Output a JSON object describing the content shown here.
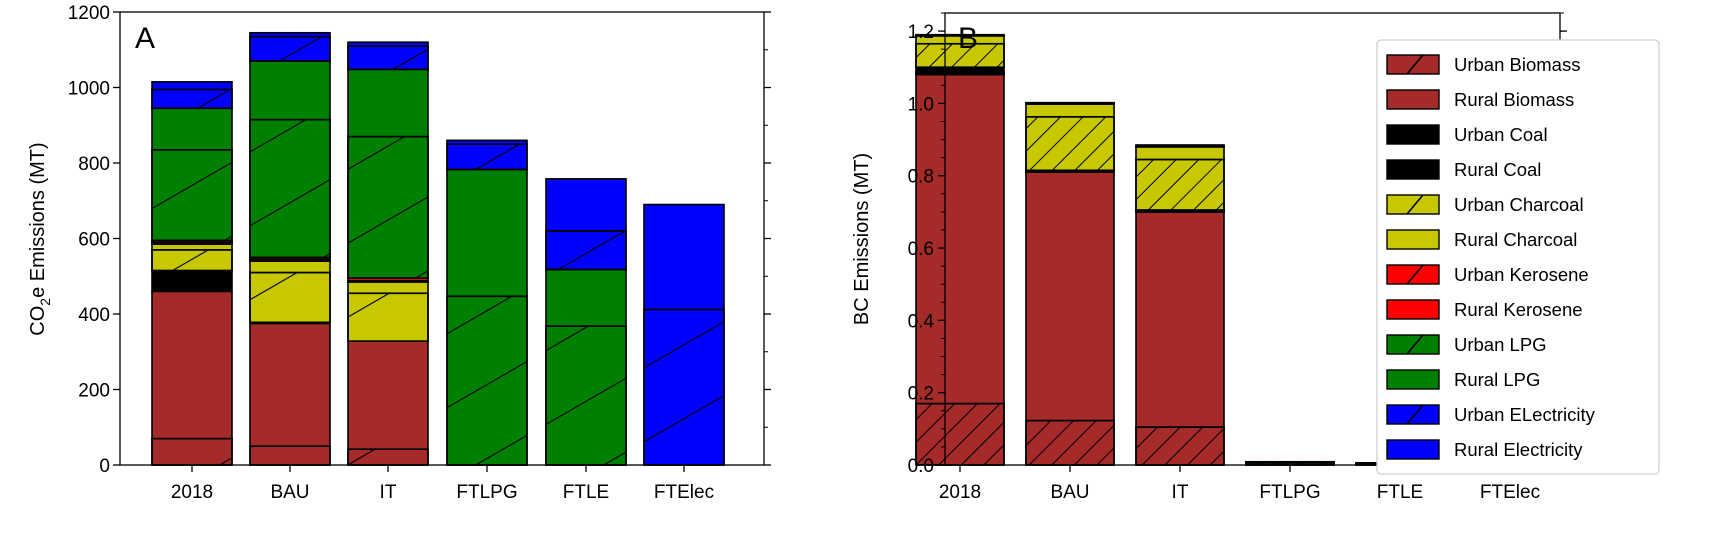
{
  "chart_data": [
    {
      "type": "bar",
      "stacked": true,
      "panel": "A",
      "title": "",
      "xlabel": "",
      "ylabel_main": "CO",
      "ylabel_sub": "2",
      "ylabel_rest": "e Emissions (MT)",
      "ylim": [
        0,
        1200
      ],
      "yticks": [
        0,
        200,
        400,
        600,
        800,
        1000,
        1200
      ],
      "ytick_labels": [
        "0",
        "200",
        "400",
        "600",
        "800",
        "1000",
        "1200"
      ],
      "categories": [
        "2018",
        "BAU",
        "IT",
        "FTLPG",
        "FTLE",
        "FTElec"
      ],
      "series": [
        {
          "name": "Urban Biomass",
          "values": [
            70,
            50,
            42,
            0,
            0,
            0
          ]
        },
        {
          "name": "Rural Biomass",
          "values": [
            390,
            325,
            286,
            0,
            0,
            0
          ]
        },
        {
          "name": "Urban Coal",
          "values": [
            0,
            0,
            0,
            0,
            0,
            0
          ]
        },
        {
          "name": "Rural Coal",
          "values": [
            55,
            3,
            0,
            0,
            0,
            0
          ]
        },
        {
          "name": "Urban Charcoal",
          "values": [
            55,
            132,
            127,
            0,
            0,
            0
          ]
        },
        {
          "name": "Rural Charcoal",
          "values": [
            15,
            30,
            30,
            0,
            0,
            0
          ]
        },
        {
          "name": "Urban Kerosene",
          "values": [
            5,
            5,
            3,
            0,
            0,
            0
          ]
        },
        {
          "name": "Rural Kerosene",
          "values": [
            5,
            5,
            7,
            0,
            0,
            0
          ]
        },
        {
          "name": "Urban LPG",
          "values": [
            240,
            365,
            375,
            447,
            368,
            0
          ]
        },
        {
          "name": "Rural LPG",
          "values": [
            110,
            155,
            178,
            336,
            150,
            0
          ]
        },
        {
          "name": "Urban ELectricity",
          "values": [
            50,
            65,
            62,
            67,
            102,
            412
          ]
        },
        {
          "name": "Rural Electricity",
          "values": [
            20,
            10,
            10,
            10,
            138,
            278
          ]
        }
      ],
      "grid": false
    },
    {
      "type": "bar",
      "stacked": true,
      "panel": "B",
      "title": "",
      "xlabel": "",
      "ylabel": "BC Emissions (MT)",
      "ylim": [
        0,
        1.25
      ],
      "yticks": [
        0.0,
        0.2,
        0.4,
        0.6,
        0.8,
        1.0,
        1.2
      ],
      "ytick_labels": [
        "0.0",
        "0.2",
        "0.4",
        "0.6",
        "0.8",
        "1.0",
        "1.2"
      ],
      "categories": [
        "2018",
        "BAU",
        "IT",
        "FTLPG",
        "FTLE",
        "FTElec"
      ],
      "series": [
        {
          "name": "Urban Biomass",
          "values": [
            0.17,
            0.123,
            0.105,
            0,
            0,
            0
          ]
        },
        {
          "name": "Rural Biomass",
          "values": [
            0.91,
            0.687,
            0.595,
            0,
            0,
            0
          ]
        },
        {
          "name": "Urban Coal",
          "values": [
            0.008,
            0.002,
            0.002,
            0,
            0,
            0
          ]
        },
        {
          "name": "Rural Coal",
          "values": [
            0.012,
            0.003,
            0.003,
            0,
            0,
            0
          ]
        },
        {
          "name": "Urban Charcoal",
          "values": [
            0.065,
            0.148,
            0.14,
            0,
            0,
            0
          ]
        },
        {
          "name": "Rural Charcoal",
          "values": [
            0.022,
            0.035,
            0.035,
            0,
            0,
            0
          ]
        },
        {
          "name": "Urban Kerosene",
          "values": [
            0.0,
            0.0,
            0.0,
            0,
            0,
            0
          ]
        },
        {
          "name": "Rural Kerosene",
          "values": [
            0.0,
            0.0,
            0.0,
            0,
            0,
            0
          ]
        },
        {
          "name": "Urban LPG",
          "values": [
            0.0,
            0.0,
            0.0,
            0.006,
            0.004,
            0
          ]
        },
        {
          "name": "Rural LPG",
          "values": [
            0.0,
            0.0,
            0.0,
            0.002,
            0.001,
            0
          ]
        },
        {
          "name": "Urban ELectricity",
          "values": [
            0.002,
            0.002,
            0.002,
            0.0005,
            0.0005,
            0.002
          ]
        },
        {
          "name": "Rural Electricity",
          "values": [
            0.001,
            0.002,
            0.003,
            0.0005,
            0.0005,
            0.001
          ]
        }
      ],
      "legend": {
        "position": "upper-right",
        "entries": [
          "Urban Biomass",
          "Rural Biomass",
          "Urban Coal",
          "Rural Coal",
          "Urban Charcoal",
          "Rural Charcoal",
          "Urban Kerosene",
          "Rural Kerosene",
          "Urban LPG",
          "Rural LPG",
          "Urban ELectricity",
          "Rural Electricity"
        ]
      },
      "grid": false
    }
  ],
  "series_styles": [
    {
      "name": "Urban Biomass",
      "color": "#a52a2a",
      "hatch": true
    },
    {
      "name": "Rural Biomass",
      "color": "#a52a2a",
      "hatch": false
    },
    {
      "name": "Urban Coal",
      "color": "#000000",
      "hatch": true
    },
    {
      "name": "Rural Coal",
      "color": "#000000",
      "hatch": false
    },
    {
      "name": "Urban Charcoal",
      "color": "#c8c800",
      "hatch": true
    },
    {
      "name": "Rural Charcoal",
      "color": "#c8c800",
      "hatch": false
    },
    {
      "name": "Urban Kerosene",
      "color": "#ff0000",
      "hatch": true
    },
    {
      "name": "Rural Kerosene",
      "color": "#ff0000",
      "hatch": false
    },
    {
      "name": "Urban LPG",
      "color": "#008000",
      "hatch": true
    },
    {
      "name": "Rural LPG",
      "color": "#008000",
      "hatch": false
    },
    {
      "name": "Urban ELectricity",
      "color": "#0000ff",
      "hatch": true
    },
    {
      "name": "Rural Electricity",
      "color": "#0000ff",
      "hatch": false
    }
  ]
}
